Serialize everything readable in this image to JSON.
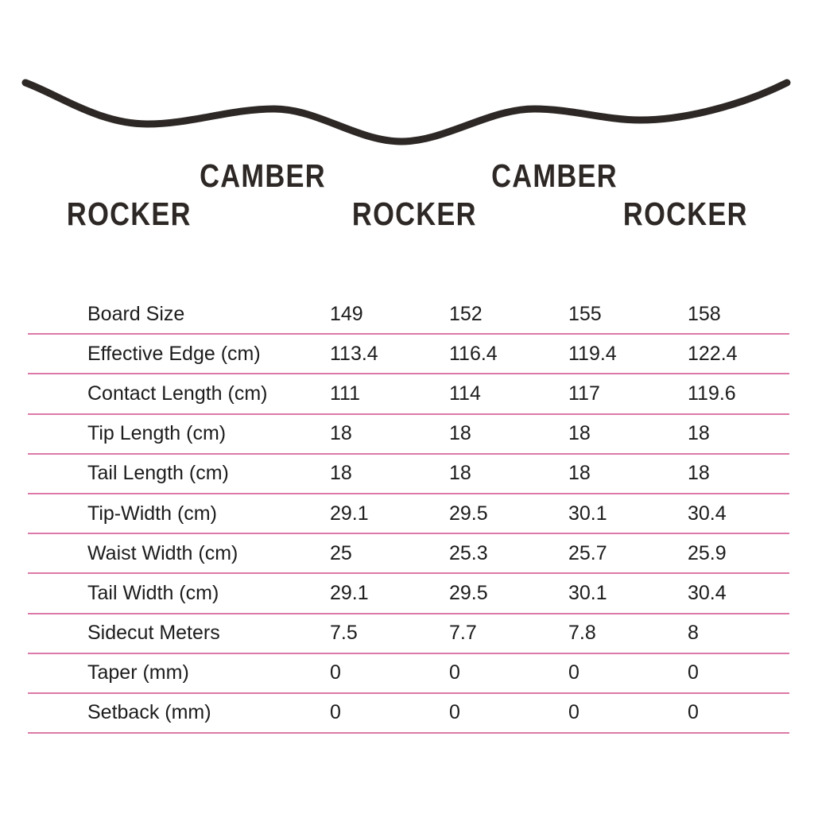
{
  "colors": {
    "background": "#ffffff",
    "curve": "#2d2825",
    "profile_label_text": "#2d2825",
    "table_text": "#1c1c1c",
    "divider": "#dc79a8"
  },
  "profile": {
    "camber_labels": [
      "CAMBER",
      "CAMBER"
    ],
    "rocker_labels": [
      "ROCKER",
      "ROCKER",
      "ROCKER"
    ]
  },
  "chart_data": {
    "type": "table",
    "title": "Snowboard size chart with hybrid rocker/camber profile diagram",
    "profile_sequence": [
      "ROCKER",
      "CAMBER",
      "ROCKER",
      "CAMBER",
      "ROCKER"
    ],
    "columns": [
      "149",
      "152",
      "155",
      "158"
    ],
    "rows": [
      {
        "label": "Board Size",
        "values": [
          "149",
          "152",
          "155",
          "158"
        ]
      },
      {
        "label": "Effective Edge (cm)",
        "values": [
          "113.4",
          "116.4",
          "119.4",
          "122.4"
        ]
      },
      {
        "label": "Contact Length (cm)",
        "values": [
          "111",
          "114",
          "117",
          "119.6"
        ]
      },
      {
        "label": "Tip Length (cm)",
        "values": [
          "18",
          "18",
          "18",
          "18"
        ]
      },
      {
        "label": "Tail Length (cm)",
        "values": [
          "18",
          "18",
          "18",
          "18"
        ]
      },
      {
        "label": "Tip-Width (cm)",
        "values": [
          "29.1",
          "29.5",
          "30.1",
          "30.4"
        ]
      },
      {
        "label": "Waist Width (cm)",
        "values": [
          "25",
          "25.3",
          "25.7",
          "25.9"
        ]
      },
      {
        "label": "Tail Width (cm)",
        "values": [
          "29.1",
          "29.5",
          "30.1",
          "30.4"
        ]
      },
      {
        "label": "Sidecut Meters",
        "values": [
          "7.5",
          "7.7",
          "7.8",
          "8"
        ]
      },
      {
        "label": "Taper (mm)",
        "values": [
          "0",
          "0",
          "0",
          "0"
        ]
      },
      {
        "label": "Setback (mm)",
        "values": [
          "0",
          "0",
          "0",
          "0"
        ]
      }
    ]
  }
}
